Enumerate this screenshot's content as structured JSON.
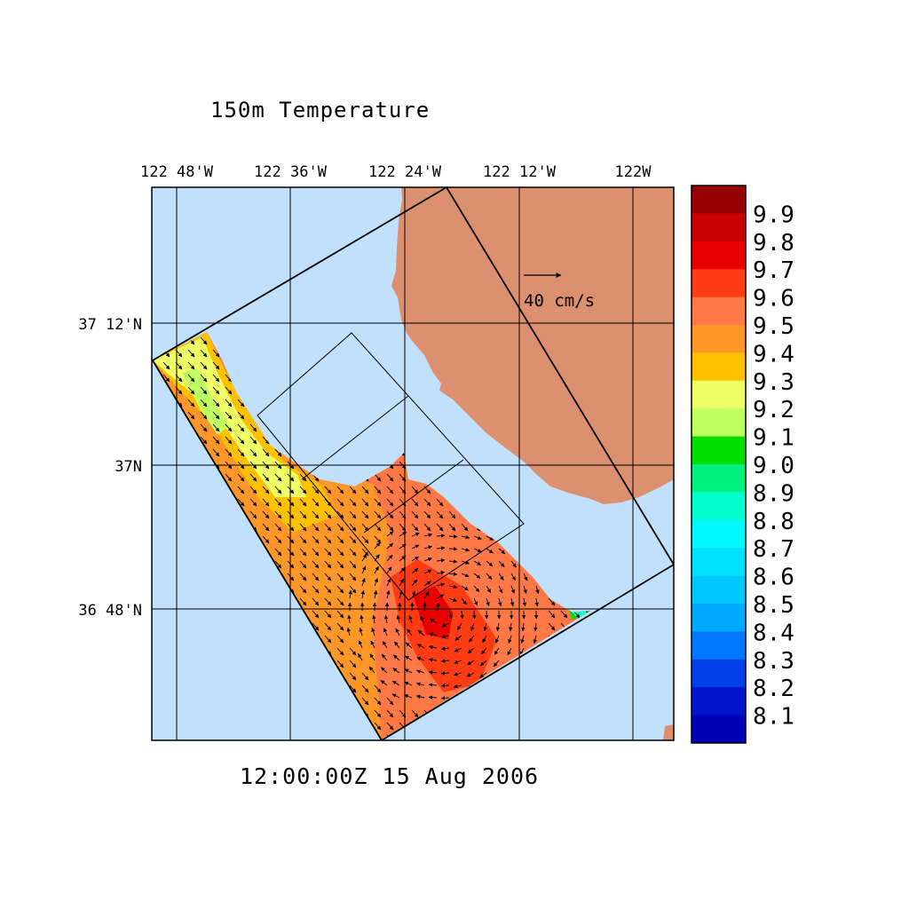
{
  "title": "150m Temperature",
  "timestamp": "12:00:00Z  15 Aug 2006",
  "axes": {
    "lon_ticks": [
      "122 48'W",
      "122 36'W",
      "122 24'W",
      "122 12'W",
      "122W"
    ],
    "lat_ticks": [
      "37 12'N",
      "37N",
      "36 48'N"
    ]
  },
  "reference_vector": {
    "label": "40 cm/s",
    "speed_cm_s": 40
  },
  "colorbar": {
    "levels": [
      "9.9",
      "9.8",
      "9.7",
      "9.6",
      "9.5",
      "9.4",
      "9.3",
      "9.2",
      "9.1",
      "9.0",
      "8.9",
      "8.8",
      "8.7",
      "8.6",
      "8.5",
      "8.4",
      "8.3",
      "8.2",
      "8.1"
    ],
    "colors": [
      "#960000",
      "#c80000",
      "#e80000",
      "#ff3c14",
      "#ff7846",
      "#ff9628",
      "#ffc000",
      "#eeff66",
      "#c0ff60",
      "#00dd00",
      "#00f080",
      "#00ffcc",
      "#00f8ff",
      "#00e0ff",
      "#00c8ff",
      "#00a8ff",
      "#0078ff",
      "#0040e8",
      "#0014cc",
      "#0000b4"
    ]
  },
  "colors": {
    "ocean": "#c0e0fc",
    "land": "#dc9070",
    "grid": "#000000"
  }
}
